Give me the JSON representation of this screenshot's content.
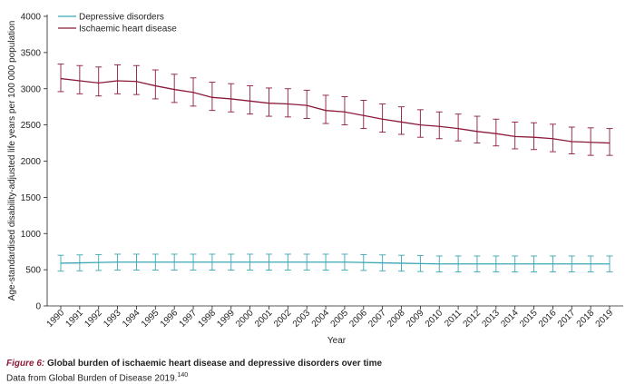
{
  "chart_data": {
    "type": "line",
    "title": "",
    "xlabel": "Year",
    "ylabel": "Age-standardised disability-adjusted life years per 100 000 population",
    "ylim": [
      0,
      4000
    ],
    "yticks": [
      0,
      500,
      1000,
      1500,
      2000,
      2500,
      3000,
      3500,
      4000
    ],
    "grid": false,
    "legend_position": "top-left",
    "x": [
      "1990",
      "1991",
      "1992",
      "1993",
      "1994",
      "1995",
      "1996",
      "1997",
      "1998",
      "1999",
      "2000",
      "2001",
      "2002",
      "2003",
      "2004",
      "2005",
      "2006",
      "2007",
      "2008",
      "2009",
      "2010",
      "2011",
      "2012",
      "2013",
      "2014",
      "2015",
      "2016",
      "2017",
      "2018",
      "2019"
    ],
    "series": [
      {
        "name": "Depressive disorders",
        "color": "#3aa7b4",
        "values": [
          590,
          595,
          600,
          605,
          605,
          605,
          605,
          605,
          605,
          605,
          605,
          605,
          605,
          605,
          605,
          605,
          600,
          595,
          590,
          585,
          580,
          580,
          580,
          580,
          580,
          580,
          580,
          580,
          580,
          580
        ],
        "lower": [
          480,
          485,
          490,
          495,
          495,
          495,
          495,
          495,
          495,
          495,
          495,
          495,
          495,
          495,
          495,
          495,
          490,
          485,
          480,
          475,
          470,
          470,
          470,
          470,
          470,
          470,
          470,
          470,
          470,
          470
        ],
        "upper": [
          700,
          705,
          710,
          715,
          715,
          715,
          715,
          715,
          715,
          715,
          715,
          715,
          715,
          715,
          715,
          715,
          710,
          705,
          700,
          695,
          690,
          690,
          690,
          690,
          690,
          690,
          690,
          690,
          690,
          690
        ]
      },
      {
        "name": "Ischaemic heart disease",
        "color": "#8b1a3a",
        "values": [
          3140,
          3110,
          3080,
          3110,
          3100,
          3040,
          2990,
          2950,
          2880,
          2860,
          2830,
          2800,
          2790,
          2770,
          2700,
          2680,
          2630,
          2580,
          2540,
          2500,
          2480,
          2450,
          2410,
          2380,
          2340,
          2330,
          2310,
          2270,
          2260,
          2250
        ],
        "lower": [
          2960,
          2930,
          2900,
          2930,
          2920,
          2860,
          2810,
          2760,
          2700,
          2680,
          2650,
          2620,
          2610,
          2590,
          2520,
          2500,
          2450,
          2400,
          2370,
          2330,
          2310,
          2280,
          2250,
          2210,
          2170,
          2160,
          2130,
          2100,
          2080,
          2080
        ],
        "upper": [
          3340,
          3320,
          3300,
          3330,
          3320,
          3260,
          3200,
          3150,
          3090,
          3070,
          3040,
          3010,
          3000,
          2980,
          2910,
          2890,
          2840,
          2790,
          2750,
          2710,
          2680,
          2650,
          2620,
          2580,
          2540,
          2530,
          2510,
          2470,
          2460,
          2450
        ]
      }
    ]
  },
  "caption": {
    "figure_number": "Figure 6:",
    "title": " Global burden of ischaemic heart disease and depressive disorders over time",
    "source": "Data from Global Burden of Disease 2019.",
    "source_ref": "140"
  }
}
